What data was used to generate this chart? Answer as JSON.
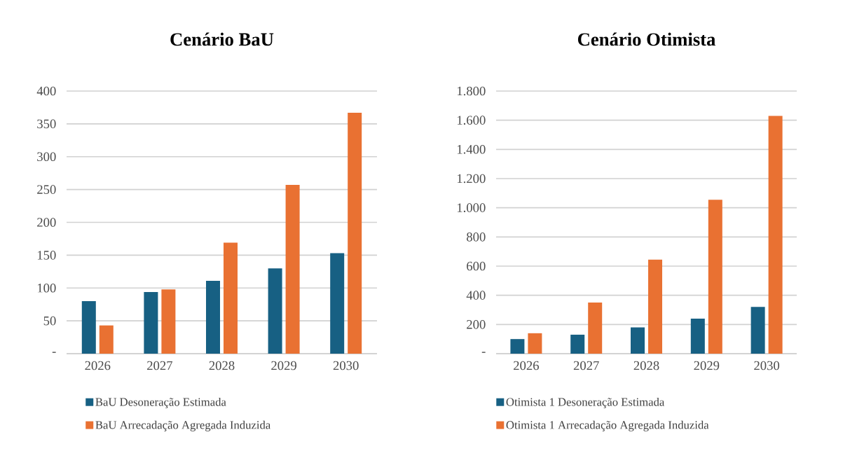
{
  "chart_data": [
    {
      "type": "bar",
      "title": "Cenário BaU",
      "categories": [
        "2026",
        "2027",
        "2028",
        "2029",
        "2030"
      ],
      "series": [
        {
          "name": "BaU Desoneração Estimada",
          "color": "#176083",
          "values": [
            80,
            94,
            111,
            130,
            153
          ]
        },
        {
          "name": "BaU Arrecadação Agregada Induzida",
          "color": "#e97132",
          "values": [
            43,
            98,
            169,
            257,
            367
          ]
        }
      ],
      "ylim": [
        0,
        400
      ],
      "yticks": [
        {
          "value": 0,
          "label": "-"
        },
        50,
        100,
        150,
        200,
        250,
        300,
        350,
        400
      ],
      "grid": "y",
      "legend": "bottom"
    },
    {
      "type": "bar",
      "title": "Cenário Otimista",
      "categories": [
        "2026",
        "2027",
        "2028",
        "2029",
        "2030"
      ],
      "series": [
        {
          "name": "Otimista 1 Desoneração Estimada",
          "color": "#176083",
          "values": [
            100,
            130,
            180,
            240,
            320
          ]
        },
        {
          "name": "Otimista 1 Arrecadação Agregada Induzida",
          "color": "#e97132",
          "values": [
            140,
            350,
            645,
            1055,
            1630
          ]
        }
      ],
      "ylim": [
        0,
        1800
      ],
      "yticks": [
        {
          "value": 0,
          "label": "-"
        },
        {
          "value": 200,
          "label": "200"
        },
        {
          "value": 400,
          "label": "400"
        },
        {
          "value": 600,
          "label": "600"
        },
        {
          "value": 800,
          "label": "800"
        },
        {
          "value": 1000,
          "label": "1.000"
        },
        {
          "value": 1200,
          "label": "1.200"
        },
        {
          "value": 1400,
          "label": "1.400"
        },
        {
          "value": 1600,
          "label": "1.600"
        },
        {
          "value": 1800,
          "label": "1.800"
        }
      ],
      "grid": "y",
      "legend": "bottom"
    }
  ]
}
